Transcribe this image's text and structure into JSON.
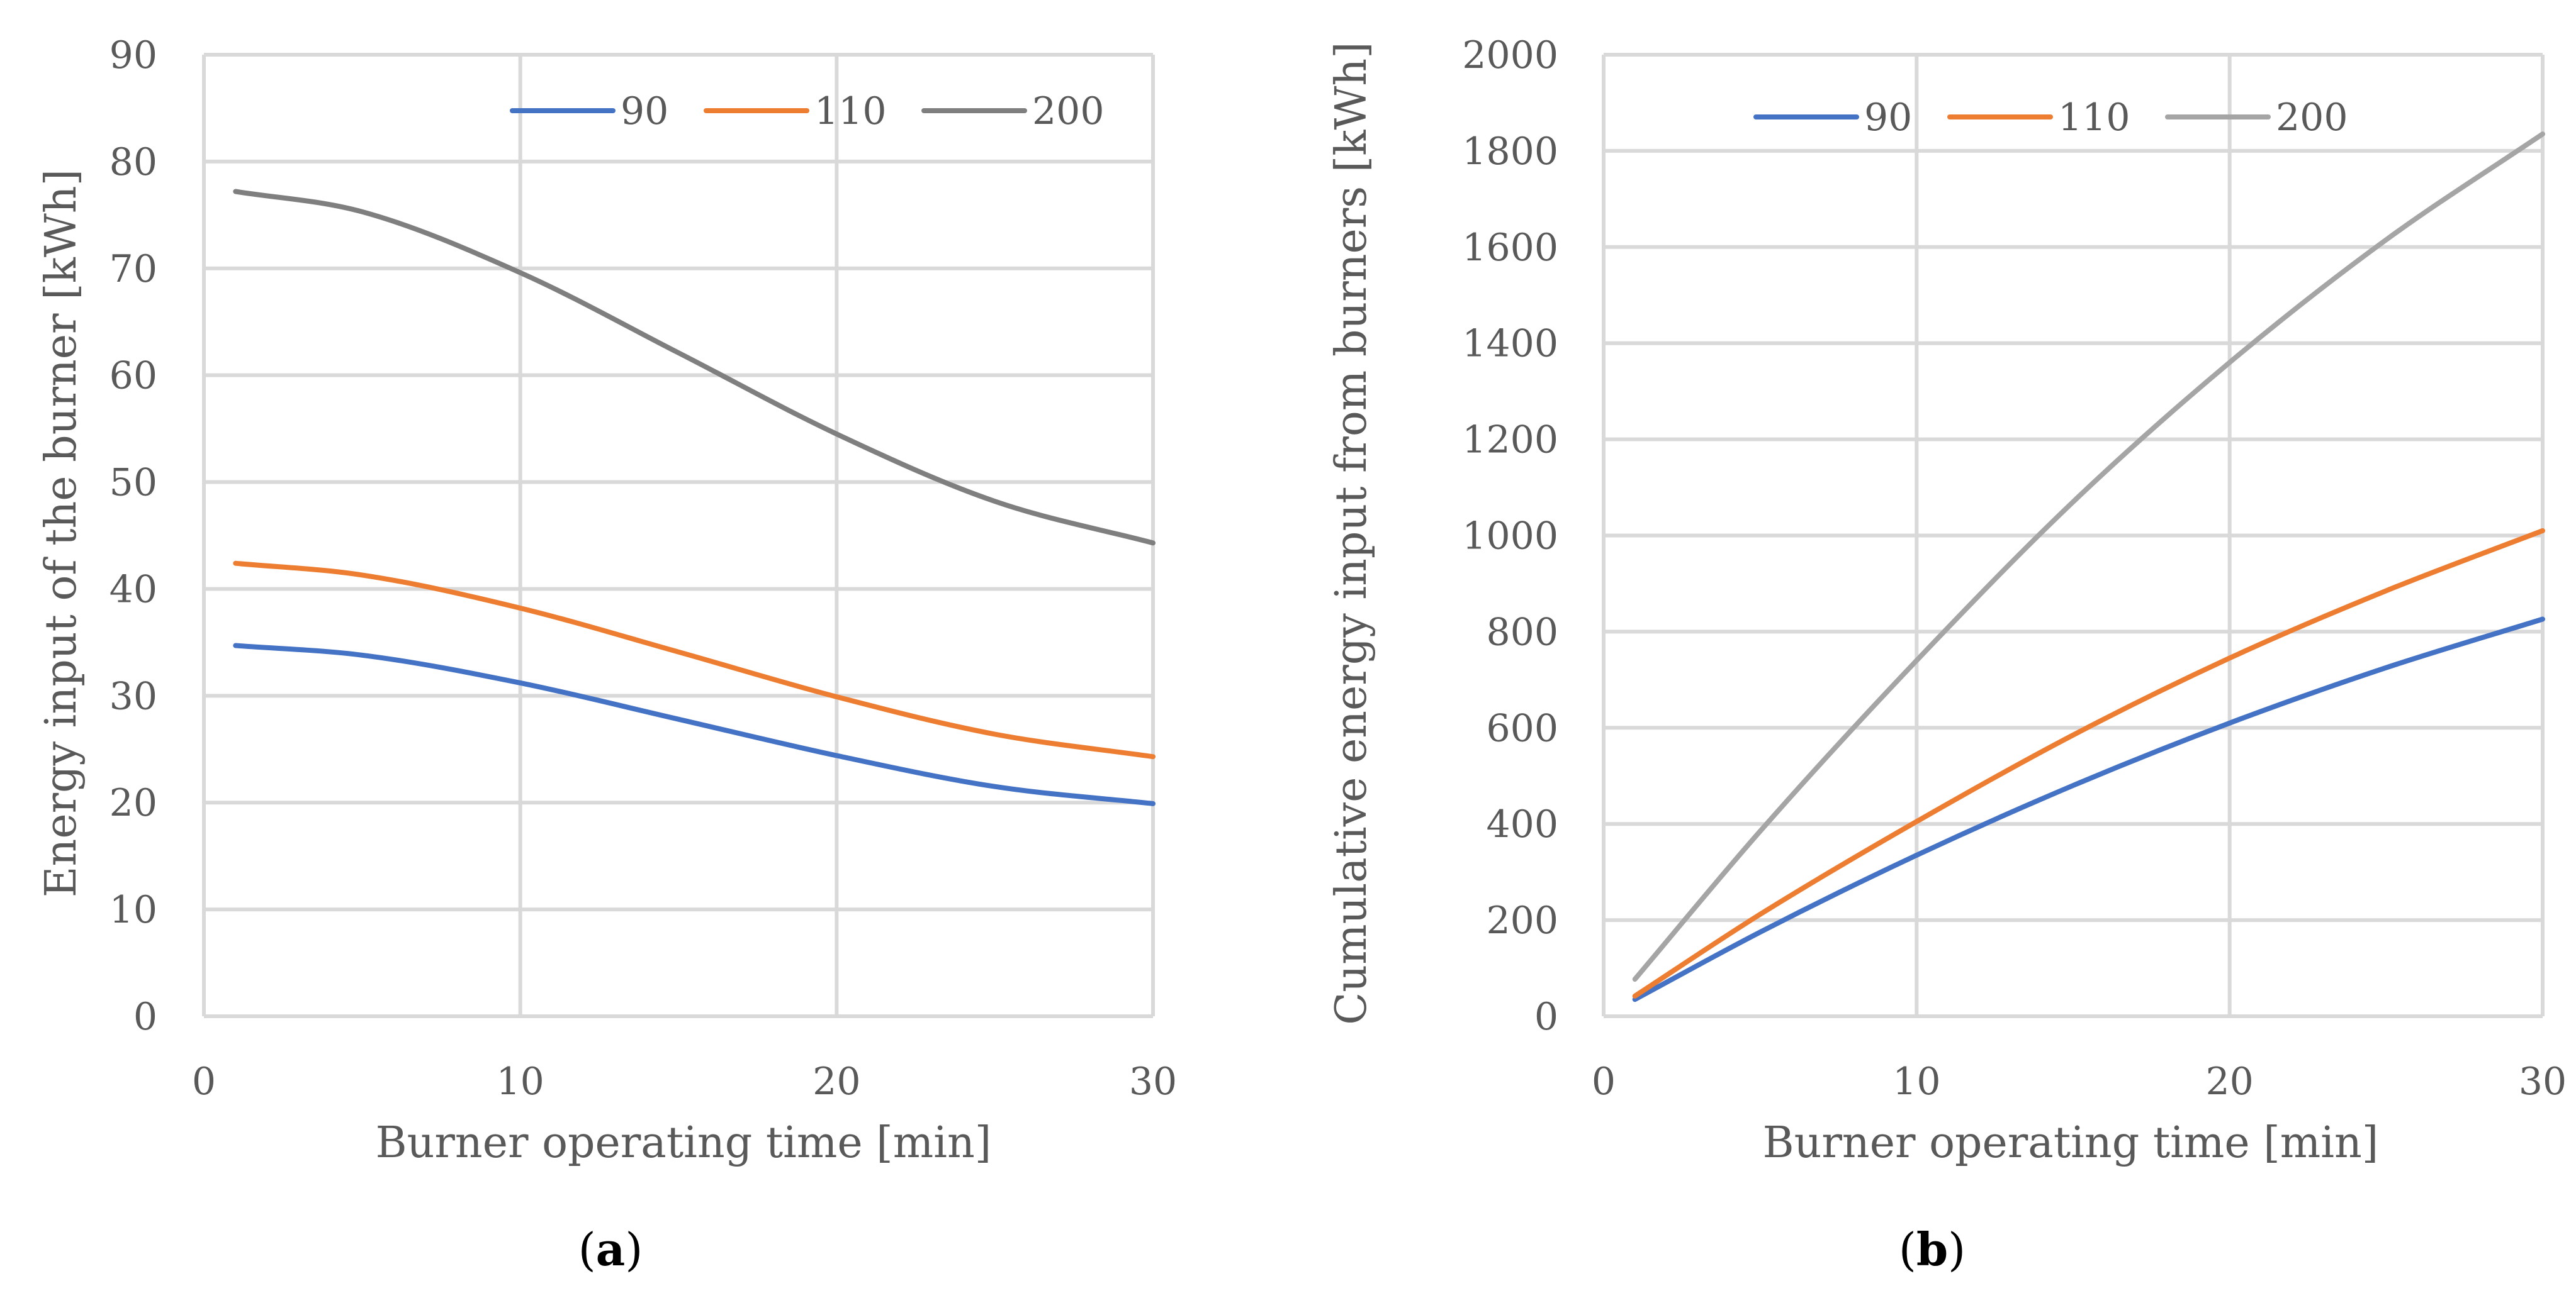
{
  "colors": {
    "s90": "#4472c4",
    "s110": "#ed7d31",
    "s200_a": "#7f7f7f",
    "s200_b": "#a5a5a5",
    "grid": "#d9d9d9",
    "text": "#595959"
  },
  "chart_data": [
    {
      "type": "line",
      "panel_label": "a",
      "title": "",
      "xlabel": "Burner operating time [min]",
      "ylabel": "Energy input of the burner [kWh]",
      "xlim": [
        0,
        30
      ],
      "ylim": [
        0,
        90
      ],
      "xticks": [
        0,
        10,
        20,
        30
      ],
      "yticks": [
        0,
        10,
        20,
        30,
        40,
        50,
        60,
        70,
        80,
        90
      ],
      "grid": true,
      "legend_position": "top-right",
      "series": [
        {
          "name": "90",
          "color_key": "s90",
          "x": [
            1,
            5,
            10,
            15,
            20,
            25,
            30
          ],
          "y": [
            34.7,
            33.8,
            31.2,
            27.8,
            24.4,
            21.5,
            19.9
          ]
        },
        {
          "name": "110",
          "color_key": "s110",
          "x": [
            1,
            5,
            10,
            15,
            20,
            25,
            30
          ],
          "y": [
            42.4,
            41.3,
            38.2,
            34.1,
            29.9,
            26.4,
            24.3
          ]
        },
        {
          "name": "200",
          "color_key": "s200_a",
          "x": [
            1,
            5,
            10,
            15,
            20,
            25,
            30
          ],
          "y": [
            77.2,
            75.3,
            69.6,
            62.1,
            54.5,
            48.2,
            44.3
          ]
        }
      ]
    },
    {
      "type": "line",
      "panel_label": "b",
      "title": "",
      "xlabel": "Burner operating time [min]",
      "ylabel": "Cumulative energy input from burners [kWh]",
      "xlim": [
        0,
        30
      ],
      "ylim": [
        0,
        2000
      ],
      "xticks": [
        0,
        10,
        20,
        30
      ],
      "yticks": [
        0,
        200,
        400,
        600,
        800,
        1000,
        1200,
        1400,
        1600,
        1800,
        2000
      ],
      "grid": true,
      "legend_position": "top-center",
      "series": [
        {
          "name": "90",
          "color_key": "s90",
          "x": [
            1,
            5,
            10,
            15,
            20,
            25,
            30
          ],
          "y": [
            35,
            175,
            335,
            480,
            610,
            725,
            826
          ]
        },
        {
          "name": "110",
          "color_key": "s110",
          "x": [
            1,
            5,
            10,
            15,
            20,
            25,
            30
          ],
          "y": [
            42,
            212,
            405,
            585,
            745,
            885,
            1010
          ]
        },
        {
          "name": "200",
          "color_key": "s200_b",
          "x": [
            1,
            5,
            10,
            15,
            20,
            25,
            30
          ],
          "y": [
            77,
            385,
            740,
            1070,
            1360,
            1615,
            1835
          ]
        }
      ]
    }
  ]
}
